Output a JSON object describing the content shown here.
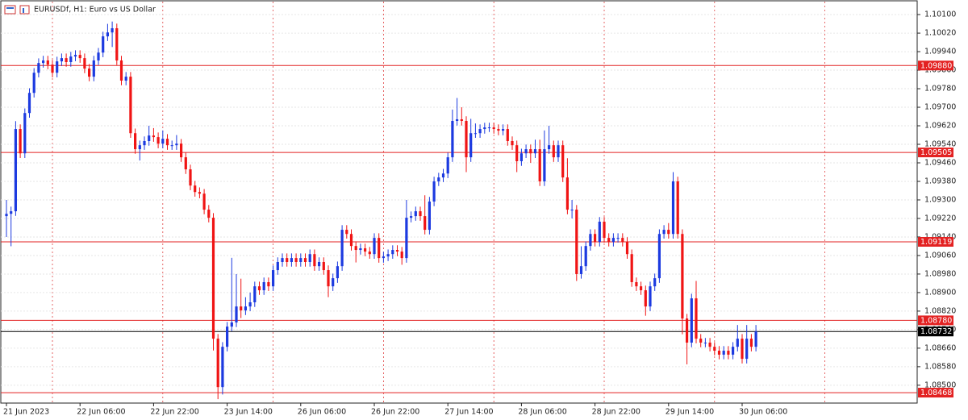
{
  "chart_data": {
    "type": "candlestick",
    "title": "EURUSDf, H1:  Euro vs US Dollar",
    "up_color": "#1c3ae0",
    "down_color": "#f01414",
    "level_color": "#e32222",
    "current_color": "#000000",
    "ylim": [
      1.08423,
      1.10156
    ],
    "yticks": [
      {
        "value": 1.101,
        "label": "1.10100"
      },
      {
        "value": 1.1002,
        "label": "1.10020"
      },
      {
        "value": 1.0994,
        "label": "1.09940"
      },
      {
        "value": 1.0986,
        "label": "1.09860"
      },
      {
        "value": 1.0978,
        "label": "1.09780"
      },
      {
        "value": 1.097,
        "label": "1.09700"
      },
      {
        "value": 1.0962,
        "label": "1.09620"
      },
      {
        "value": 1.0954,
        "label": "1.09540"
      },
      {
        "value": 1.0946,
        "label": "1.09460"
      },
      {
        "value": 1.0938,
        "label": "1.09380"
      },
      {
        "value": 1.093,
        "label": "1.09300"
      },
      {
        "value": 1.0922,
        "label": "1.09220"
      },
      {
        "value": 1.0914,
        "label": "1.09140"
      },
      {
        "value": 1.0906,
        "label": "1.09060"
      },
      {
        "value": 1.0898,
        "label": "1.08980"
      },
      {
        "value": 1.089,
        "label": "1.08900"
      },
      {
        "value": 1.0882,
        "label": "1.08820"
      },
      {
        "value": 1.0874,
        "label": "1.08740"
      },
      {
        "value": 1.0866,
        "label": "1.08660"
      },
      {
        "value": 1.0858,
        "label": "1.08580"
      },
      {
        "value": 1.085,
        "label": "1.08500"
      }
    ],
    "grid": true,
    "levels": [
      {
        "value": 1.0988,
        "label": "1.09880"
      },
      {
        "value": 1.09505,
        "label": "1.09505"
      },
      {
        "value": 1.09119,
        "label": "1.09119"
      },
      {
        "value": 1.0878,
        "label": "1.08780"
      },
      {
        "value": 1.08468,
        "label": "1.08468"
      }
    ],
    "current_price": {
      "value": 1.08732,
      "label": "1.08732"
    },
    "categories": [
      "21 Jun 2023",
      null,
      null,
      null,
      null,
      null,
      null,
      null,
      null,
      null,
      null,
      null,
      null,
      null,
      null,
      null,
      "22 Jun 06:00",
      null,
      null,
      null,
      null,
      null,
      null,
      null,
      null,
      null,
      null,
      null,
      null,
      null,
      null,
      null,
      "22 Jun 22:00",
      null,
      null,
      null,
      null,
      null,
      null,
      null,
      null,
      null,
      null,
      null,
      null,
      null,
      null,
      null,
      "23 Jun 14:00",
      null,
      null,
      null,
      null,
      null,
      null,
      null,
      null,
      null,
      null,
      null,
      null,
      null,
      null,
      null,
      "26 Jun 06:00",
      null,
      null,
      null,
      null,
      null,
      null,
      null,
      null,
      null,
      null,
      null,
      null,
      null,
      null,
      null,
      "26 Jun 22:00",
      null,
      null,
      null,
      null,
      null,
      null,
      null,
      null,
      null,
      null,
      null,
      null,
      null,
      null,
      null,
      "27 Jun 14:00",
      null,
      null,
      null,
      null,
      null,
      null,
      null,
      null,
      null,
      null,
      null,
      null,
      null,
      null,
      null,
      "28 Jun 06:00",
      null,
      null,
      null,
      null,
      null,
      null,
      null,
      null,
      null,
      null,
      null,
      null,
      null,
      null,
      null,
      "28 Jun 22:00",
      null,
      null,
      null,
      null,
      null,
      null,
      null,
      null,
      null,
      null,
      null,
      null,
      null,
      null,
      null,
      "29 Jun 14:00",
      null,
      null,
      null,
      null,
      null,
      null,
      null,
      null,
      null,
      null,
      null,
      null,
      null,
      null,
      null,
      "30 Jun 06:00",
      null,
      null,
      null
    ],
    "ohlc": [
      [
        1.0923,
        1.093,
        1.0914,
        1.0924
      ],
      [
        1.0924,
        1.09271,
        1.091,
        1.09251
      ],
      [
        1.09251,
        1.0964,
        1.09231,
        1.09606
      ],
      [
        1.09606,
        1.09626,
        1.09481,
        1.09501
      ],
      [
        1.09501,
        1.09695,
        1.09481,
        1.09675
      ],
      [
        1.09675,
        1.09782,
        1.09655,
        1.09762
      ],
      [
        1.09762,
        1.09869,
        1.09742,
        1.09849
      ],
      [
        1.09849,
        1.09911,
        1.09829,
        1.09891
      ],
      [
        1.09891,
        1.09922,
        1.09871,
        1.09902
      ],
      [
        1.09902,
        1.09922,
        1.09864,
        1.09884
      ],
      [
        1.09884,
        1.09904,
        1.09829,
        1.09849
      ],
      [
        1.09849,
        1.09918,
        1.09829,
        1.09898
      ],
      [
        1.09898,
        1.09932,
        1.09878,
        1.09912
      ],
      [
        1.09912,
        1.09932,
        1.09875,
        1.09895
      ],
      [
        1.09895,
        1.09939,
        1.09875,
        1.09919
      ],
      [
        1.09919,
        1.09946,
        1.09899,
        1.09926
      ],
      [
        1.09926,
        1.09946,
        1.09892,
        1.09912
      ],
      [
        1.09912,
        1.09932,
        1.09847,
        1.09867
      ],
      [
        1.09867,
        1.09887,
        1.09812,
        1.09832
      ],
      [
        1.09832,
        1.09922,
        1.09812,
        1.09902
      ],
      [
        1.09902,
        1.09956,
        1.09882,
        1.09936
      ],
      [
        1.09936,
        1.10026,
        1.09916,
        1.10006
      ],
      [
        1.10006,
        1.1006,
        1.09986,
        1.10023
      ],
      [
        1.10023,
        1.1007,
        1.0996,
        1.10041
      ],
      [
        1.10041,
        1.10061,
        1.09882,
        1.09902
      ],
      [
        1.09902,
        1.09922,
        1.09795,
        1.09815
      ],
      [
        1.09815,
        1.09852,
        1.09795,
        1.09832
      ],
      [
        1.09832,
        1.09852,
        1.09568,
        1.09588
      ],
      [
        1.09588,
        1.09608,
        1.09499,
        1.09519
      ],
      [
        1.09519,
        1.09556,
        1.0947,
        1.09536
      ],
      [
        1.09536,
        1.09574,
        1.09516,
        1.09554
      ],
      [
        1.09554,
        1.0962,
        1.09534,
        1.09578
      ],
      [
        1.09578,
        1.0961,
        1.09551,
        1.09571
      ],
      [
        1.09571,
        1.09591,
        1.09523,
        1.09543
      ],
      [
        1.09543,
        1.096,
        1.09523,
        1.09564
      ],
      [
        1.09564,
        1.09584,
        1.09516,
        1.09536
      ],
      [
        1.09536,
        1.09556,
        1.09516,
        1.09536
      ],
      [
        1.09536,
        1.0958,
        1.09516,
        1.09543
      ],
      [
        1.09543,
        1.09563,
        1.09464,
        1.09484
      ],
      [
        1.09484,
        1.09504,
        1.09412,
        1.09432
      ],
      [
        1.09432,
        1.09452,
        1.09342,
        1.09362
      ],
      [
        1.09362,
        1.09382,
        1.09314,
        1.09334
      ],
      [
        1.09334,
        1.09354,
        1.09307,
        1.09327
      ],
      [
        1.09327,
        1.09347,
        1.09238,
        1.09258
      ],
      [
        1.09258,
        1.09278,
        1.09203,
        1.09223
      ],
      [
        1.09223,
        1.09243,
        1.0865,
        1.08701
      ],
      [
        1.08701,
        1.08721,
        1.0844,
        1.08492
      ],
      [
        1.08492,
        1.08686,
        1.0846,
        1.08666
      ],
      [
        1.08666,
        1.08773,
        1.08646,
        1.08753
      ],
      [
        1.08753,
        1.0905,
        1.08733,
        1.08771
      ],
      [
        1.08771,
        1.0898,
        1.08751,
        1.0884
      ],
      [
        1.0884,
        1.0896,
        1.0879,
        1.08823
      ],
      [
        1.08823,
        1.0888,
        1.08803,
        1.0884
      ],
      [
        1.0884,
        1.089,
        1.0882,
        1.08858
      ],
      [
        1.08858,
        1.08947,
        1.08838,
        1.08927
      ],
      [
        1.08927,
        1.08947,
        1.0889,
        1.0891
      ],
      [
        1.0891,
        1.08965,
        1.0889,
        1.08945
      ],
      [
        1.08945,
        1.08965,
        1.08907,
        1.08927
      ],
      [
        1.08927,
        1.09017,
        1.08907,
        1.08997
      ],
      [
        1.08997,
        1.09052,
        1.08977,
        1.09032
      ],
      [
        1.09032,
        1.09069,
        1.09012,
        1.09049
      ],
      [
        1.09049,
        1.09069,
        1.09012,
        1.09032
      ],
      [
        1.09032,
        1.09069,
        1.09012,
        1.09049
      ],
      [
        1.09049,
        1.09069,
        1.09012,
        1.09032
      ],
      [
        1.09032,
        1.09069,
        1.09012,
        1.09049
      ],
      [
        1.09049,
        1.09069,
        1.09012,
        1.09032
      ],
      [
        1.09032,
        1.09086,
        1.09012,
        1.09066
      ],
      [
        1.09066,
        1.09086,
        1.08994,
        1.09014
      ],
      [
        1.09014,
        1.09052,
        1.08994,
        1.09032
      ],
      [
        1.09032,
        1.09052,
        1.08977,
        1.08997
      ],
      [
        1.08997,
        1.09017,
        1.0888,
        1.08927
      ],
      [
        1.08927,
        1.08982,
        1.08907,
        1.08962
      ],
      [
        1.08962,
        1.09034,
        1.08942,
        1.09014
      ],
      [
        1.09014,
        1.09191,
        1.08994,
        1.09171
      ],
      [
        1.09171,
        1.09191,
        1.09133,
        1.09153
      ],
      [
        1.09153,
        1.09173,
        1.09081,
        1.09101
      ],
      [
        1.09101,
        1.09121,
        1.0903,
        1.09084
      ],
      [
        1.09084,
        1.09111,
        1.09064,
        1.09091
      ],
      [
        1.09091,
        1.09111,
        1.09057,
        1.09077
      ],
      [
        1.09077,
        1.09097,
        1.09046,
        1.09066
      ],
      [
        1.09066,
        1.09156,
        1.09046,
        1.09136
      ],
      [
        1.09136,
        1.09156,
        1.09029,
        1.09049
      ],
      [
        1.09049,
        1.09076,
        1.09029,
        1.09056
      ],
      [
        1.09056,
        1.09086,
        1.09036,
        1.09066
      ],
      [
        1.09066,
        1.09104,
        1.09046,
        1.09084
      ],
      [
        1.09084,
        1.09104,
        1.09057,
        1.09077
      ],
      [
        1.09077,
        1.09097,
        1.0902,
        1.09049
      ],
      [
        1.09049,
        1.093,
        1.09029,
        1.09223
      ],
      [
        1.09223,
        1.0925,
        1.09203,
        1.0923
      ],
      [
        1.0923,
        1.09271,
        1.0921,
        1.09251
      ],
      [
        1.09251,
        1.09271,
        1.0921,
        1.0923
      ],
      [
        1.0923,
        1.0932,
        1.09151,
        1.09171
      ],
      [
        1.09171,
        1.09313,
        1.09151,
        1.09293
      ],
      [
        1.09293,
        1.094,
        1.09273,
        1.0938
      ],
      [
        1.0938,
        1.09417,
        1.0936,
        1.09397
      ],
      [
        1.09397,
        1.09434,
        1.09377,
        1.09414
      ],
      [
        1.09414,
        1.09504,
        1.09394,
        1.09484
      ],
      [
        1.09484,
        1.0969,
        1.09464,
        1.09641
      ],
      [
        1.09641,
        1.0974,
        1.09621,
        1.09648
      ],
      [
        1.09648,
        1.097,
        1.09621,
        1.09641
      ],
      [
        1.09641,
        1.09661,
        1.0942,
        1.09484
      ],
      [
        1.09484,
        1.0965,
        1.09464,
        1.09588
      ],
      [
        1.09588,
        1.0963,
        1.09568,
        1.09588
      ],
      [
        1.09588,
        1.09626,
        1.09568,
        1.09606
      ],
      [
        1.09606,
        1.09633,
        1.09586,
        1.09613
      ],
      [
        1.09613,
        1.09633,
        1.09593,
        1.09613
      ],
      [
        1.09613,
        1.09633,
        1.09586,
        1.09606
      ],
      [
        1.09606,
        1.09626,
        1.09579,
        1.09599
      ],
      [
        1.09599,
        1.09626,
        1.09579,
        1.09606
      ],
      [
        1.09606,
        1.09626,
        1.09534,
        1.09554
      ],
      [
        1.09554,
        1.09574,
        1.09516,
        1.09536
      ],
      [
        1.09536,
        1.09556,
        1.0942,
        1.09467
      ],
      [
        1.09467,
        1.09521,
        1.09447,
        1.09501
      ],
      [
        1.09501,
        1.09539,
        1.09481,
        1.09519
      ],
      [
        1.09519,
        1.09539,
        1.0946,
        1.09501
      ],
      [
        1.09501,
        1.0956,
        1.09481,
        1.09519
      ],
      [
        1.09519,
        1.0956,
        1.0936,
        1.0938
      ],
      [
        1.0938,
        1.096,
        1.0936,
        1.09519
      ],
      [
        1.09519,
        1.0962,
        1.09499,
        1.09536
      ],
      [
        1.09536,
        1.09556,
        1.09464,
        1.09484
      ],
      [
        1.09484,
        1.09556,
        1.09464,
        1.09536
      ],
      [
        1.09536,
        1.09556,
        1.09377,
        1.09397
      ],
      [
        1.09397,
        1.0948,
        1.09238,
        1.09258
      ],
      [
        1.09258,
        1.093,
        1.0922,
        1.09258
      ],
      [
        1.09258,
        1.09278,
        1.0895,
        1.0898
      ],
      [
        1.0898,
        1.091,
        1.0896,
        1.09014
      ],
      [
        1.09014,
        1.09121,
        1.08994,
        1.09101
      ],
      [
        1.09101,
        1.09173,
        1.09081,
        1.09153
      ],
      [
        1.09153,
        1.09173,
        1.09099,
        1.09119
      ],
      [
        1.09119,
        1.09226,
        1.09099,
        1.09206
      ],
      [
        1.09206,
        1.09226,
        1.09116,
        1.09136
      ],
      [
        1.09136,
        1.09156,
        1.09099,
        1.09119
      ],
      [
        1.09119,
        1.09156,
        1.09099,
        1.09136
      ],
      [
        1.09136,
        1.09156,
        1.09116,
        1.09136
      ],
      [
        1.09136,
        1.09156,
        1.09099,
        1.09119
      ],
      [
        1.09119,
        1.09139,
        1.09046,
        1.09066
      ],
      [
        1.09066,
        1.09086,
        1.08925,
        1.08945
      ],
      [
        1.08945,
        1.08965,
        1.08907,
        1.08927
      ],
      [
        1.08927,
        1.08947,
        1.0889,
        1.0891
      ],
      [
        1.0891,
        1.0893,
        1.088,
        1.0884
      ],
      [
        1.0884,
        1.08947,
        1.0882,
        1.08927
      ],
      [
        1.08927,
        1.08982,
        1.08907,
        1.08962
      ],
      [
        1.08962,
        1.09173,
        1.08942,
        1.09153
      ],
      [
        1.09153,
        1.09191,
        1.09133,
        1.09171
      ],
      [
        1.09171,
        1.092,
        1.09133,
        1.09153
      ],
      [
        1.09153,
        1.0942,
        1.09133,
        1.0938
      ],
      [
        1.0938,
        1.094,
        1.09133,
        1.09153
      ],
      [
        1.09153,
        1.09173,
        1.0872,
        1.08788
      ],
      [
        1.08788,
        1.08808,
        1.0859,
        1.08684
      ],
      [
        1.08684,
        1.08895,
        1.08664,
        1.08875
      ],
      [
        1.08875,
        1.0895,
        1.08681,
        1.08701
      ],
      [
        1.08701,
        1.08721,
        1.08664,
        1.08684
      ],
      [
        1.08684,
        1.08704,
        1.08664,
        1.08684
      ],
      [
        1.08684,
        1.08704,
        1.08646,
        1.08666
      ],
      [
        1.08666,
        1.08686,
        1.08629,
        1.08649
      ],
      [
        1.08649,
        1.08669,
        1.08612,
        1.08632
      ],
      [
        1.08632,
        1.08669,
        1.08612,
        1.08649
      ],
      [
        1.08649,
        1.08669,
        1.08612,
        1.08632
      ],
      [
        1.08632,
        1.08686,
        1.08612,
        1.08666
      ],
      [
        1.08666,
        1.0876,
        1.08646,
        1.08701
      ],
      [
        1.08701,
        1.08721,
        1.08594,
        1.08614
      ],
      [
        1.08614,
        1.0876,
        1.08594,
        1.08701
      ],
      [
        1.08701,
        1.08721,
        1.08646,
        1.08666
      ],
      [
        1.08666,
        1.0876,
        1.08646,
        1.08732
      ]
    ]
  }
}
